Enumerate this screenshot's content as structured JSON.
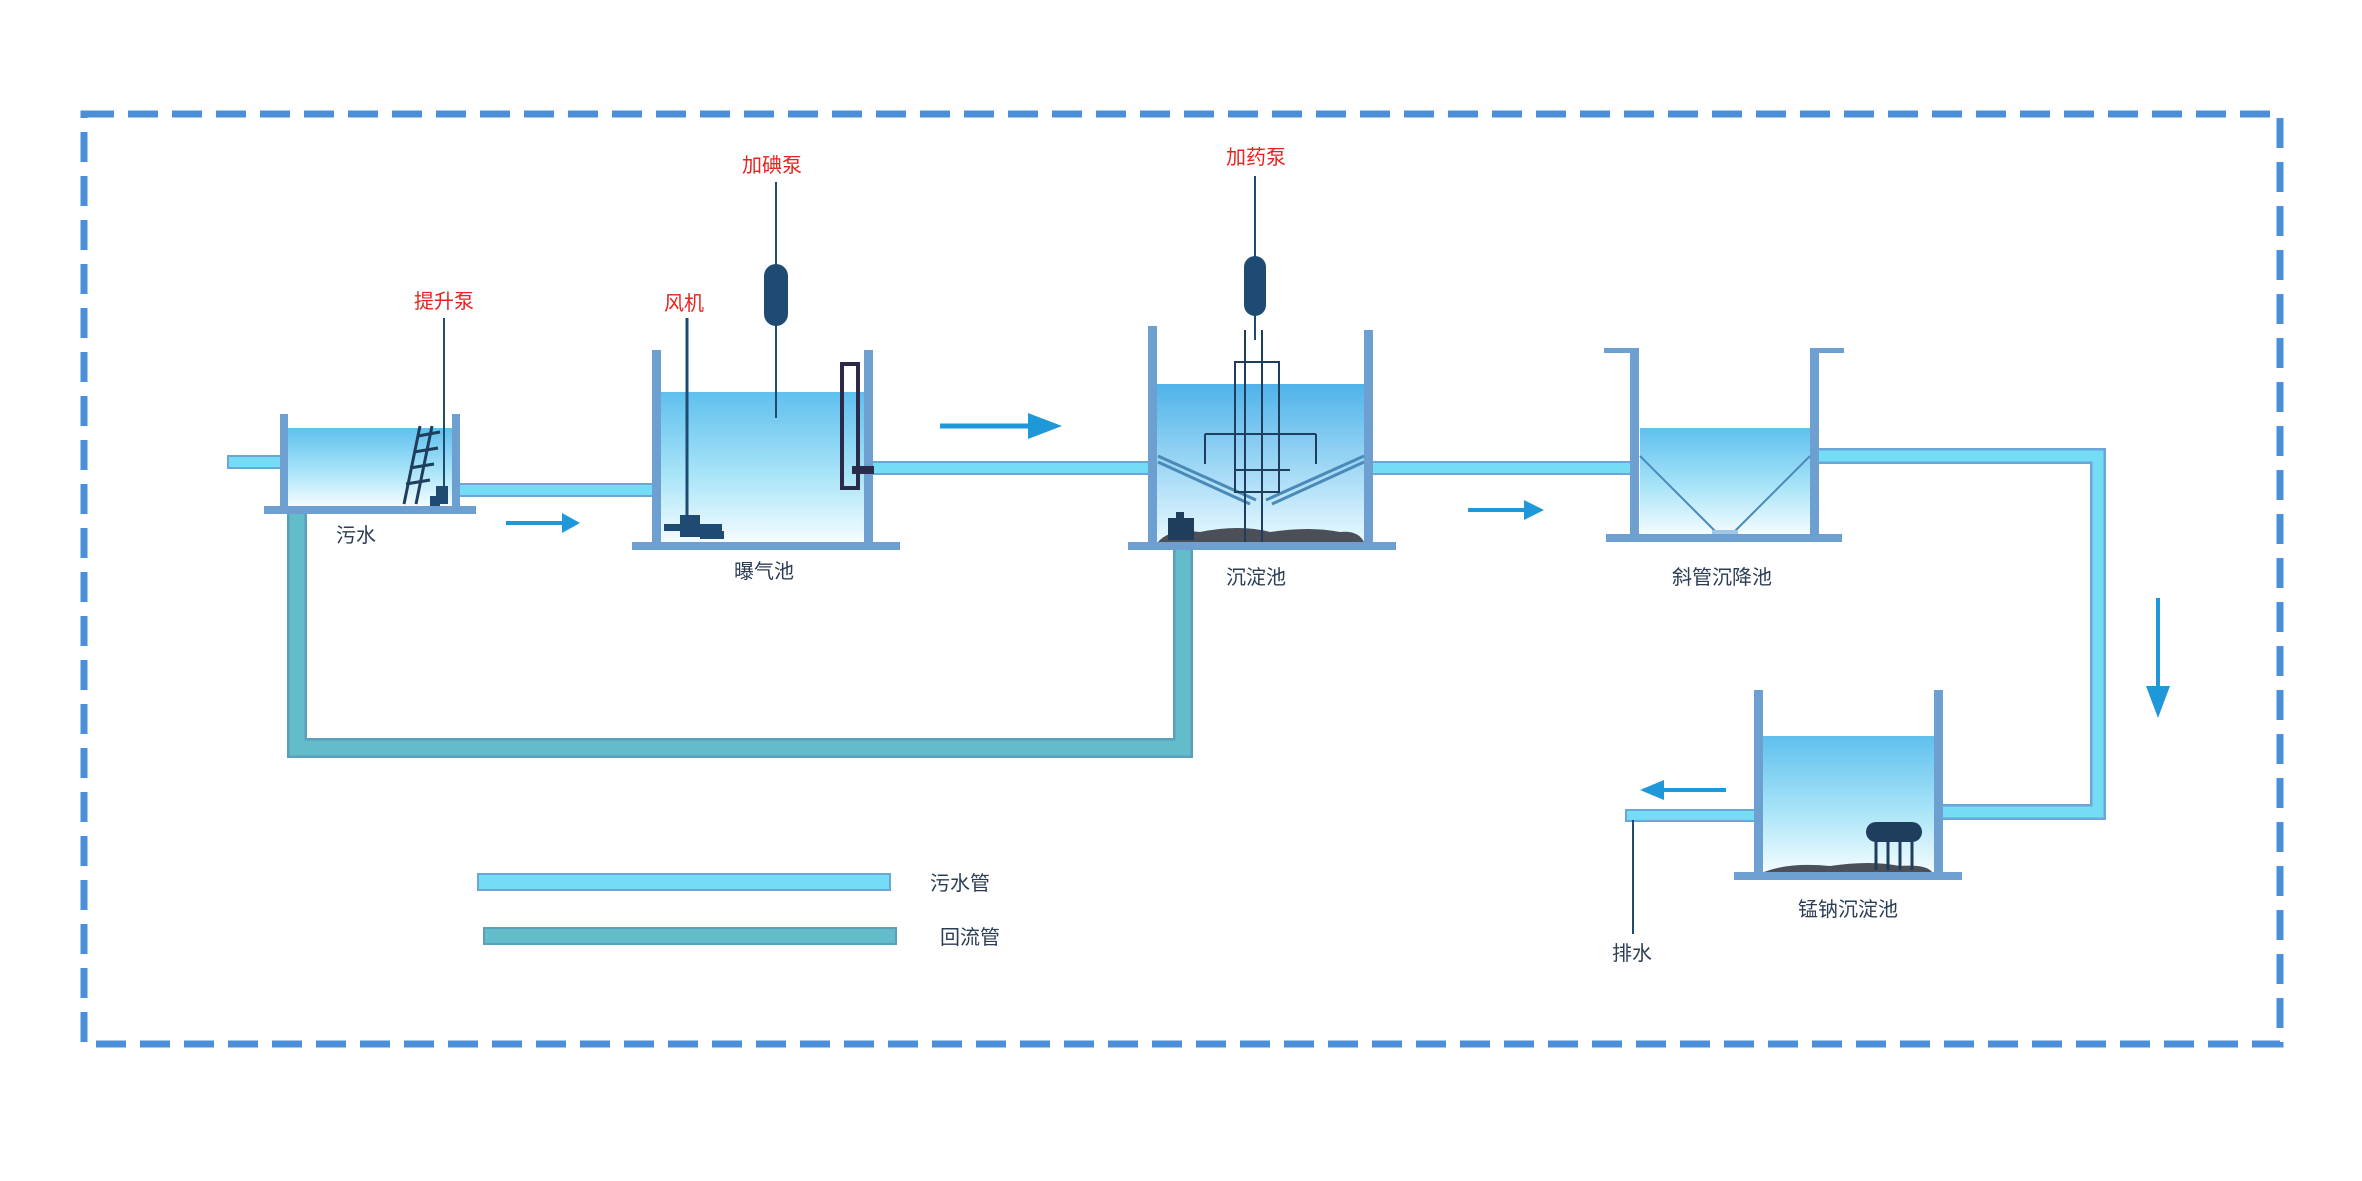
{
  "labels": {
    "sewage": "污水",
    "lift_pump": "提升泵",
    "aeration_tank": "曝气池",
    "blower": "风机",
    "iodine_pump": "加碘泵",
    "sedimentation_tank": "沉淀池",
    "dosing_pump": "加药泵",
    "inclined_tube_settler": "斜管沉降池",
    "mn_na_settler": "锰钠沉淀池",
    "drain": "排水"
  },
  "legend": {
    "sewage_pipe": "污水管",
    "return_pipe": "回流管"
  },
  "colors": {
    "border_dash": "#4a8fd8",
    "wall": "#6e9fd1",
    "sewage_pipe": "#75dcf5",
    "return_pipe": "#63bcc9",
    "arrow": "#1e98d8",
    "equipment": "#1f4b73",
    "pump_label": "#e8231f",
    "text": "#2c3e55"
  }
}
